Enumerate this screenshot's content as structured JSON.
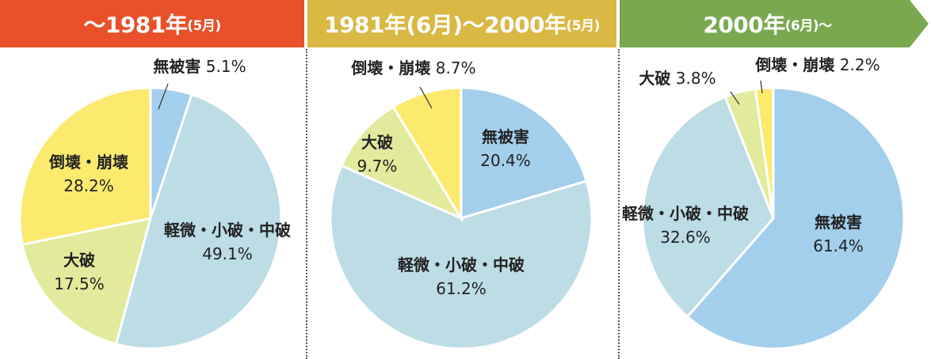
{
  "chart_data": [
    {
      "type": "pie",
      "title_main": "〜1981年",
      "title_sub": "(5月)",
      "header_color": "#e8512a",
      "slices": [
        {
          "label": "無被害",
          "value": 5.1,
          "value_text": "5.1%",
          "color": "#a3cfec"
        },
        {
          "label": "軽微・小破・中破",
          "value": 49.1,
          "value_text": "49.1%",
          "color": "#bcdce6"
        },
        {
          "label": "大破",
          "value": 17.5,
          "value_text": "17.5%",
          "color": "#e2ea9c"
        },
        {
          "label": "倒壊・崩壊",
          "value": 28.2,
          "value_text": "28.2%",
          "color": "#fbea6e"
        }
      ]
    },
    {
      "type": "pie",
      "title_main": "1981年(6月)〜2000年",
      "title_sub": "(5月)",
      "header_color": "#d9b844",
      "slices": [
        {
          "label": "無被害",
          "value": 20.4,
          "value_text": "20.4%",
          "color": "#a3cfec"
        },
        {
          "label": "軽微・小破・中破",
          "value": 61.2,
          "value_text": "61.2%",
          "color": "#bcdce6"
        },
        {
          "label": "大破",
          "value": 9.7,
          "value_text": "9.7%",
          "color": "#e2ea9c"
        },
        {
          "label": "倒壊・崩壊",
          "value": 8.7,
          "value_text": "8.7%",
          "color": "#fbea6e"
        }
      ]
    },
    {
      "type": "pie",
      "title_main": "2000年",
      "title_sub": "(6月)〜",
      "header_color": "#7aa84f",
      "slices": [
        {
          "label": "無被害",
          "value": 61.4,
          "value_text": "61.4%",
          "color": "#a3cfec"
        },
        {
          "label": "軽微・小破・中破",
          "value": 32.6,
          "value_text": "32.6%",
          "color": "#bcdce6"
        },
        {
          "label": "大破",
          "value": 3.8,
          "value_text": "3.8%",
          "color": "#e2ea9c"
        },
        {
          "label": "倒壊・崩壊",
          "value": 2.2,
          "value_text": "2.2%",
          "color": "#fbea6e"
        }
      ]
    }
  ]
}
